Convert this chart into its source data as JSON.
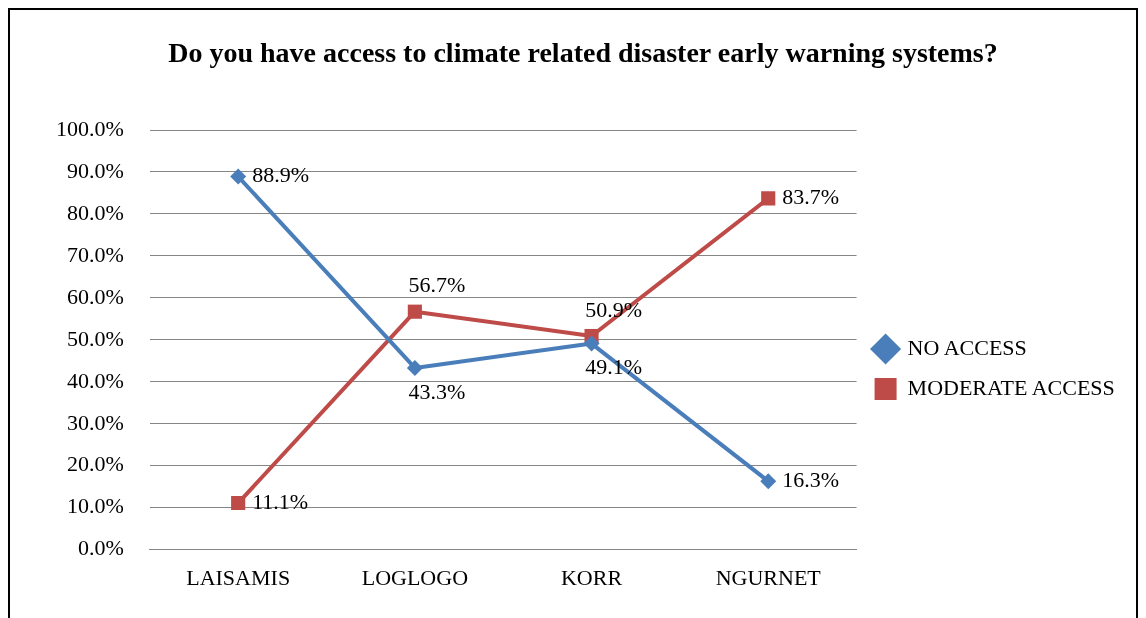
{
  "chart_data": {
    "type": "line",
    "title": "Do you have access to climate related disaster early warning systems?",
    "categories": [
      "LAISAMIS",
      "LOGLOGO",
      "KORR",
      "NGURNET"
    ],
    "series": [
      {
        "name": "NO ACCESS",
        "color": "#4a7ebb",
        "marker": "diamond",
        "values": [
          88.9,
          43.3,
          49.1,
          16.3
        ],
        "value_labels": [
          "88.9%",
          "43.3%",
          "49.1%",
          "16.3%"
        ]
      },
      {
        "name": "MODERATE ACCESS",
        "color": "#be4b48",
        "marker": "square",
        "values": [
          11.1,
          56.7,
          50.9,
          83.7
        ],
        "value_labels": [
          "11.1%",
          "56.7%",
          "50.9%",
          "83.7%"
        ]
      }
    ],
    "ylim": [
      0,
      100
    ],
    "yticks": [
      {
        "value": 0,
        "label": "0.0%"
      },
      {
        "value": 10,
        "label": "10.0%"
      },
      {
        "value": 20,
        "label": "20.0%"
      },
      {
        "value": 30,
        "label": "30.0%"
      },
      {
        "value": 40,
        "label": "40.0%"
      },
      {
        "value": 50,
        "label": "50.0%"
      },
      {
        "value": 60,
        "label": "60.0%"
      },
      {
        "value": 70,
        "label": "70.0%"
      },
      {
        "value": 80,
        "label": "80.0%"
      },
      {
        "value": 90,
        "label": "90.0%"
      },
      {
        "value": 100,
        "label": "100.0%"
      }
    ],
    "grid": "y",
    "legend": "right",
    "line_style": "solid"
  }
}
